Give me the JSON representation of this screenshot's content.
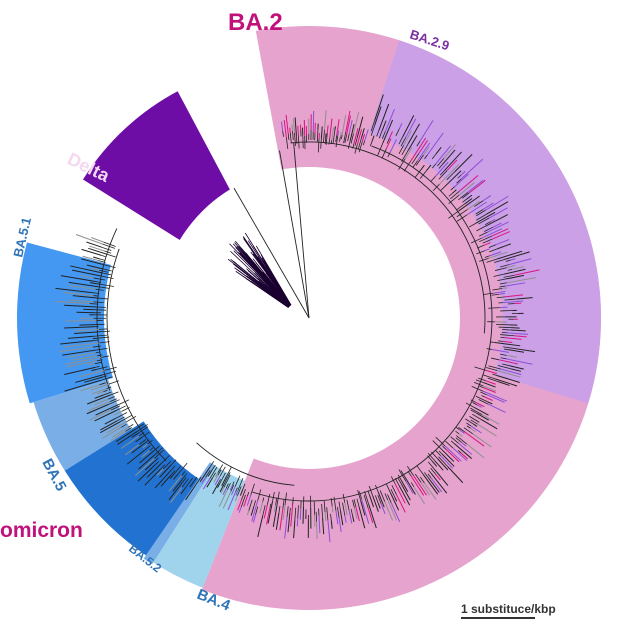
{
  "figure": {
    "clades": [
      {
        "id": "ba2",
        "label": "BA.2",
        "color": "#e6a3ce"
      },
      {
        "id": "ba29",
        "label": "BA.2.9",
        "color": "#cba0e6"
      },
      {
        "id": "delta",
        "label": "Delta",
        "color": "#6e0ca6"
      },
      {
        "id": "ba51",
        "label": "BA.5.1",
        "color": "#4498f1"
      },
      {
        "id": "ba5",
        "label": "BA.5",
        "color": "#7aaee6"
      },
      {
        "id": "ba52",
        "label": "BA.5.2",
        "color": "#2273d1"
      },
      {
        "id": "ba4",
        "label": "BA.4",
        "color": "#a0d3ec"
      }
    ],
    "group_label": "omicron",
    "scale_bar_label": "1 substituce/kbp"
  },
  "colors": {
    "label_magenta": "#c0127a",
    "label_purple": "#7a2fa0",
    "label_blue": "#2f74b8",
    "label_white": "#f2d9f0",
    "branch": "#222222",
    "tip_magenta": "#d8157f",
    "tip_purple": "#8a4fd6",
    "tip_gray": "#8f8f8f"
  }
}
